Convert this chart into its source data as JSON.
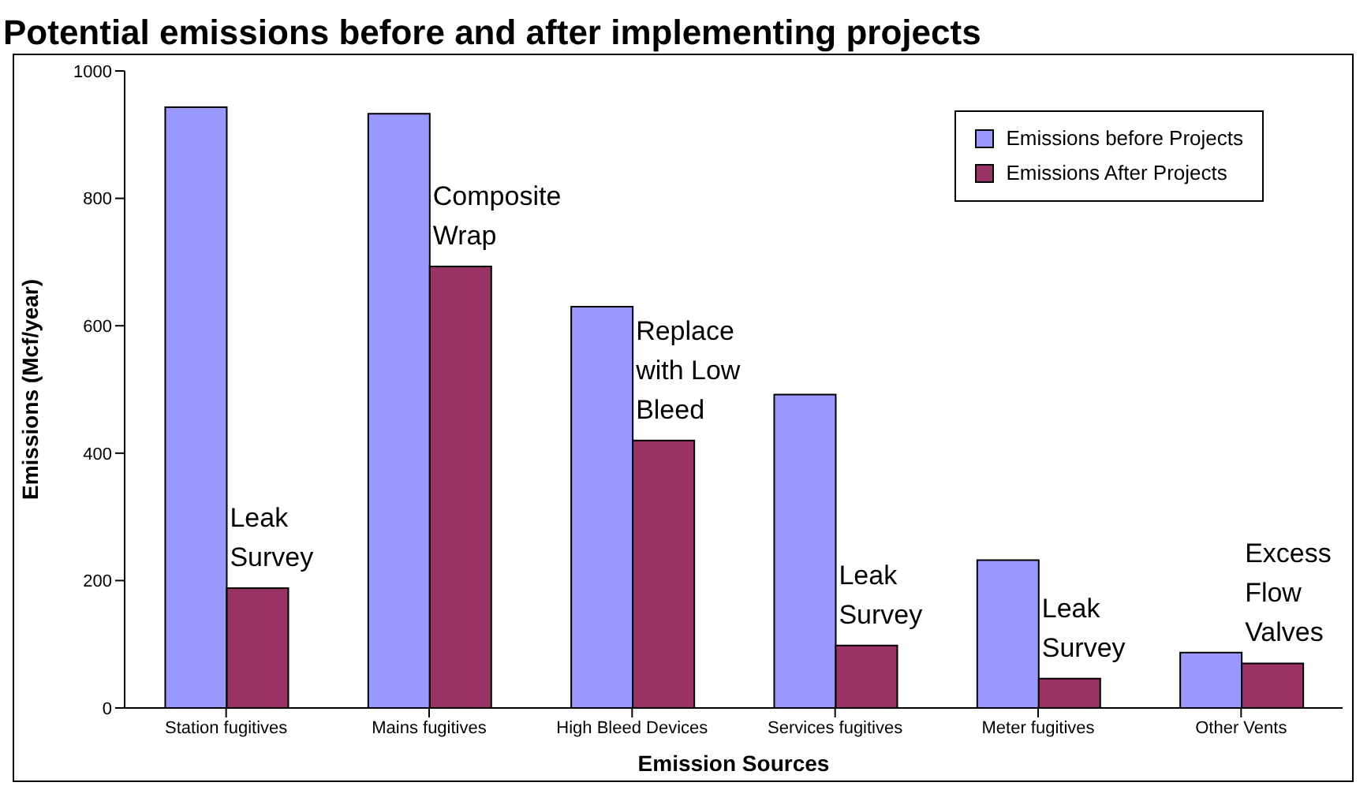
{
  "chart_data": {
    "type": "bar",
    "title": "Potential emissions before and after implementing projects",
    "xlabel": "Emission Sources",
    "ylabel": "Emissions (Mcf/year)",
    "categories": [
      "Station fugitives",
      "Mains fugitives",
      "High Bleed Devices",
      "Services fugitives",
      "Meter fugitives",
      "Other Vents"
    ],
    "series": [
      {
        "name": "Emissions before Projects",
        "color": "#9999ff",
        "values": [
          943,
          933,
          630,
          492,
          232,
          87
        ]
      },
      {
        "name": "Emissions After Projects",
        "color": "#993366",
        "values": [
          188,
          693,
          420,
          98,
          46,
          70
        ]
      }
    ],
    "ylim": [
      0,
      1000
    ],
    "yticks": [
      0,
      200,
      400,
      600,
      800,
      1000
    ],
    "grid": false,
    "legend": "top right",
    "annotations": [
      {
        "text": "Leak Survey",
        "x": "Station fugitives",
        "y": 188
      },
      {
        "text": "Composite Wrap",
        "x": "Mains fugitives",
        "y": 693
      },
      {
        "text": "Replace with Low Bleed",
        "x": "High Bleed Devices",
        "y": 420
      },
      {
        "text": "Leak Survey",
        "x": "Services fugitives",
        "y": 98
      },
      {
        "text": "Leak Survey",
        "x": "Meter fugitives",
        "y": 46
      },
      {
        "text": "Excess Flow Valves",
        "x": "Other Vents",
        "y": 70
      }
    ]
  }
}
